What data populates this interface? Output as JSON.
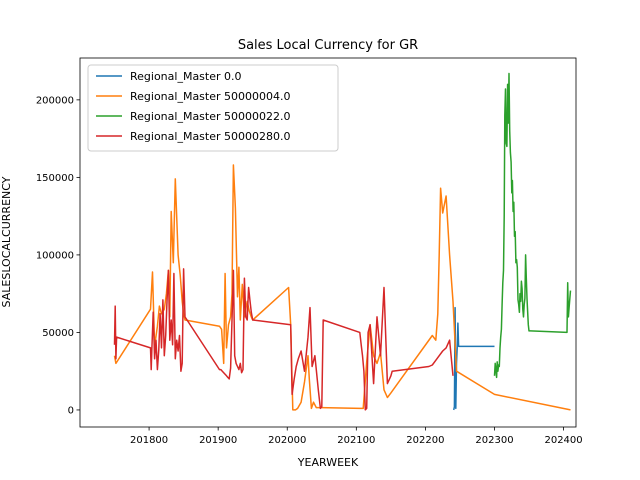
{
  "chart_data": {
    "type": "line",
    "title": "Sales Local Currency for GR",
    "xlabel": "YEARWEEK",
    "ylabel": "SALESLOCALCURRENCY",
    "xlim": [
      201700,
      202418
    ],
    "ylim": [
      -11000,
      227000
    ],
    "xticks": [
      201800,
      201900,
      202000,
      202100,
      202200,
      202300,
      202400
    ],
    "xtick_labels": [
      "201800",
      "201900",
      "202000",
      "202100",
      "202200",
      "202300",
      "202400"
    ],
    "yticks": [
      0,
      50000,
      100000,
      150000,
      200000
    ],
    "ytick_labels": [
      "0",
      "50000",
      "100000",
      "150000",
      "200000"
    ],
    "legend_position": "upper-left",
    "series": [
      {
        "name": "Regional_Master 0.0",
        "color": "#1f77b4",
        "x": [
          202241,
          202242,
          202243,
          202244,
          202245,
          202246,
          202247,
          202248,
          202249,
          202250,
          202252,
          202300
        ],
        "y": [
          0,
          2000,
          66000,
          1000,
          30000,
          40000,
          56000,
          41000,
          41000,
          41000,
          41000,
          41000
        ]
      },
      {
        "name": "Regional_Master 50000004.0",
        "color": "#ff7f0e",
        "x": [
          201750,
          201752,
          201802,
          201805,
          201808,
          201812,
          201815,
          201818,
          201822,
          201825,
          201828,
          201830,
          201832,
          201835,
          201838,
          201842,
          201845,
          201848,
          201850,
          201852,
          201902,
          201905,
          201908,
          201910,
          201912,
          201915,
          201918,
          201920,
          201922,
          201925,
          201928,
          201930,
          201932,
          201935,
          201938,
          201942,
          201945,
          201948,
          201950,
          202002,
          202005,
          202008,
          202012,
          202015,
          202020,
          202025,
          202030,
          202032,
          202035,
          202038,
          202042,
          202045,
          202050,
          202105,
          202110,
          202115,
          202120,
          202125,
          202130,
          202135,
          202140,
          202145,
          202150,
          202210,
          202215,
          202218,
          202220,
          202222,
          202225,
          202230,
          202235,
          202240,
          202245,
          202300,
          202410
        ],
        "y": [
          35000,
          30000,
          65000,
          89000,
          41000,
          54000,
          67000,
          62000,
          65000,
          75000,
          90000,
          60000,
          128000,
          95000,
          149000,
          100000,
          87000,
          70000,
          62000,
          58000,
          54000,
          52000,
          30000,
          88000,
          40000,
          55000,
          60000,
          75000,
          158000,
          130000,
          73000,
          92000,
          58000,
          81000,
          60000,
          70000,
          64000,
          60000,
          58000,
          79000,
          55000,
          0,
          0,
          1000,
          5000,
          18000,
          35000,
          20000,
          1000,
          5000,
          1500,
          1500,
          1500,
          1000,
          1000,
          31000,
          55000,
          35000,
          30000,
          37000,
          13000,
          8000,
          11000,
          48000,
          45000,
          62000,
          100000,
          143000,
          127000,
          138000,
          100000,
          70000,
          25000,
          10000,
          0
        ]
      },
      {
        "name": "Regional_Master 50000022.0",
        "color": "#2ca02c",
        "x": [
          202300,
          202301,
          202302,
          202303,
          202304,
          202305,
          202306,
          202307,
          202308,
          202309,
          202310,
          202311,
          202312,
          202313,
          202314,
          202315,
          202316,
          202317,
          202318,
          202319,
          202320,
          202321,
          202322,
          202323,
          202324,
          202325,
          202326,
          202327,
          202328,
          202329,
          202330,
          202331,
          202332,
          202333,
          202334,
          202335,
          202336,
          202337,
          202338,
          202339,
          202340,
          202341,
          202342,
          202343,
          202344,
          202345,
          202346,
          202347,
          202348,
          202349,
          202350,
          202352,
          202405,
          202406,
          202407,
          202408,
          202410
        ],
        "y": [
          22000,
          30000,
          26000,
          21000,
          31000,
          25000,
          29000,
          28000,
          40000,
          47000,
          52000,
          68000,
          82000,
          90000,
          125000,
          190000,
          207000,
          172000,
          170000,
          210000,
          185000,
          217000,
          180000,
          166000,
          160000,
          140000,
          148000,
          128000,
          134000,
          112000,
          115000,
          95000,
          97000,
          92000,
          71000,
          68000,
          63000,
          75000,
          70000,
          83000,
          78000,
          65000,
          60000,
          68000,
          72000,
          100000,
          85000,
          72000,
          64000,
          55000,
          51000,
          51000,
          50000,
          82000,
          60000,
          66000,
          77000
        ]
      },
      {
        "name": "Regional_Master 50000280.0",
        "color": "#d62728",
        "x": [
          201750,
          201751,
          201752,
          201753,
          201802,
          201803,
          201804,
          201806,
          201808,
          201810,
          201812,
          201814,
          201816,
          201818,
          201820,
          201822,
          201824,
          201826,
          201828,
          201830,
          201832,
          201834,
          201836,
          201838,
          201840,
          201842,
          201844,
          201846,
          201848,
          201850,
          201852,
          201902,
          201904,
          201906,
          201908,
          201910,
          201912,
          201914,
          201916,
          201918,
          201920,
          201922,
          201924,
          201926,
          201928,
          201930,
          201932,
          201934,
          201936,
          201938,
          201940,
          201942,
          201944,
          201946,
          201948,
          201950,
          202005,
          202007,
          202010,
          202013,
          202016,
          202020,
          202025,
          202030,
          202033,
          202036,
          202040,
          202045,
          202048,
          202050,
          202052,
          202105,
          202107,
          202109,
          202111,
          202113,
          202115,
          202117,
          202120,
          202125,
          202130,
          202135,
          202140,
          202145,
          202148,
          202150,
          202152,
          202205,
          202210,
          202215,
          202220,
          202225,
          202230,
          202235,
          202240
        ],
        "y": [
          42000,
          67000,
          33000,
          47000,
          40000,
          26000,
          38000,
          63000,
          33000,
          45000,
          26000,
          39000,
          62000,
          40000,
          71000,
          35000,
          48000,
          70000,
          90000,
          45000,
          58000,
          42000,
          88000,
          33000,
          45000,
          38000,
          48000,
          25000,
          30000,
          91000,
          60000,
          26000,
          26000,
          25000,
          24000,
          23000,
          22000,
          21000,
          20000,
          27000,
          58000,
          90000,
          35000,
          30000,
          28000,
          26000,
          30000,
          24000,
          26000,
          85000,
          60000,
          58000,
          79000,
          71000,
          63000,
          58000,
          55000,
          10000,
          20000,
          28000,
          33000,
          38000,
          25000,
          47000,
          66000,
          28000,
          35000,
          13000,
          1000,
          2000,
          58000,
          50000,
          42000,
          35000,
          25000,
          0,
          1000,
          50000,
          55000,
          17000,
          60000,
          35000,
          79000,
          17000,
          20000,
          22000,
          25000,
          28000,
          29000,
          32000,
          35000,
          38000,
          40000,
          45000,
          22000
        ]
      }
    ]
  }
}
